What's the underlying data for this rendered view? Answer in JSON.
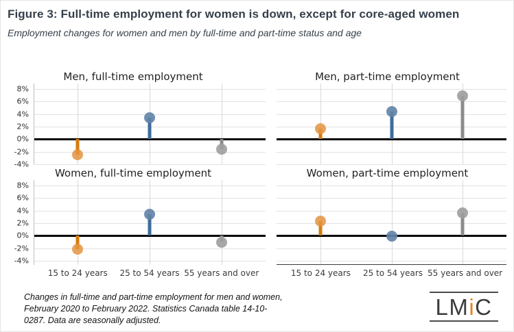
{
  "header": {
    "title": "Figure 3: Full-time employment for women is down, except for core-aged women",
    "subtitle": "Employment changes for women and men by full-time and part-time status and age"
  },
  "chart_data": [
    {
      "type": "lollipop",
      "title": "Men, full-time employment",
      "categories": [
        "15 to 24 years",
        "25 to 54 years",
        "55 years and over"
      ],
      "values": [
        -2.5,
        3.4,
        -1.6
      ],
      "ylim": [
        -4,
        8
      ],
      "ytick_step": 2,
      "ytick_suffix": "%",
      "show_y_labels": true,
      "show_x_labels": false,
      "bottom_spine": false,
      "grid": true
    },
    {
      "type": "lollipop",
      "title": "Men, part-time employment",
      "categories": [
        "15 to 24 years",
        "25 to 54 years",
        "55 years and over"
      ],
      "values": [
        1.7,
        4.4,
        6.9
      ],
      "ylim": [
        -4,
        8
      ],
      "ytick_step": 2,
      "ytick_suffix": "%",
      "show_y_labels": false,
      "show_x_labels": false,
      "bottom_spine": false,
      "grid": true
    },
    {
      "type": "lollipop",
      "title": "Women, full-time employment",
      "categories": [
        "15 to 24 years",
        "25 to 54 years",
        "55 years and over"
      ],
      "values": [
        -2.1,
        3.4,
        -1.0
      ],
      "ylim": [
        -4,
        8
      ],
      "ytick_step": 2,
      "ytick_suffix": "%",
      "show_y_labels": true,
      "show_x_labels": true,
      "bottom_spine": false,
      "grid": true
    },
    {
      "type": "lollipop",
      "title": "Women, part-time employment",
      "categories": [
        "15 to 24 years",
        "25 to 54 years",
        "55 years and over"
      ],
      "values": [
        2.3,
        -0.1,
        3.6
      ],
      "ylim": [
        -4,
        8
      ],
      "ytick_step": 2,
      "ytick_suffix": "%",
      "show_y_labels": false,
      "show_x_labels": true,
      "bottom_spine": true,
      "grid": true
    }
  ],
  "palette": {
    "stems": [
      "#d67c0c",
      "#3e6d9c",
      "#8c8c8c"
    ],
    "dots": [
      "rgba(228,148,64,0.85)",
      "rgba(97,131,167,0.9)",
      "rgba(157,157,157,0.9)"
    ],
    "zero_line": "#000000",
    "gridline": "#e2e2e2"
  },
  "layout": {
    "x_positions_pct": [
      19,
      50,
      81
    ],
    "legend": "none"
  },
  "footnote": {
    "text": "Changes in full-time and part-time employment for men and women, February 2020 to February 2022. Statistics Canada table 14-10-0287. Data are seasonally adjusted."
  },
  "logo": {
    "left": "LM",
    "accent": "i",
    "right": "C"
  }
}
